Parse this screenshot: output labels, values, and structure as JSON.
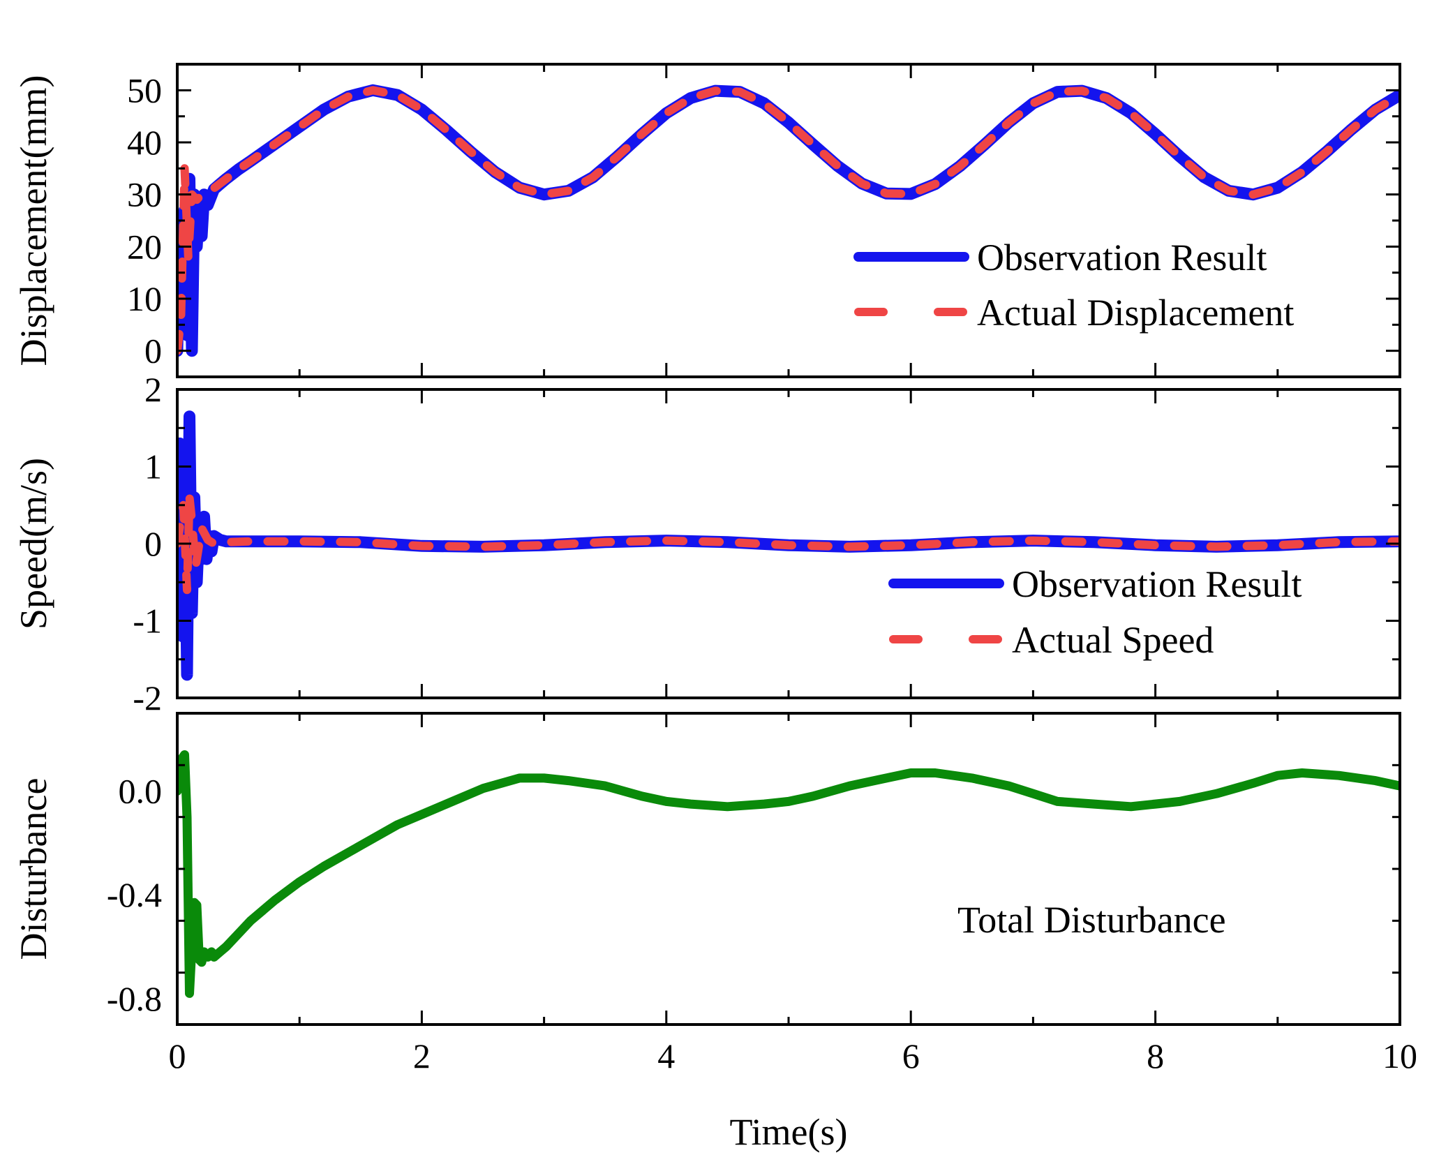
{
  "figure": {
    "xlabel": "Time(s)"
  },
  "colors": {
    "observation": "#1414ee",
    "actual": "#ef4545",
    "disturbance": "#0a8a0a",
    "axis": "#000000"
  },
  "chart_data": [
    {
      "type": "line",
      "ylabel": "Displacement(mm)",
      "xlim": [
        0,
        10
      ],
      "ylim": [
        -5,
        55
      ],
      "xticks": [
        0,
        2,
        4,
        6,
        8,
        10
      ],
      "yticks": [
        0,
        10,
        20,
        30,
        40,
        50
      ],
      "ytick_labels": [
        "0",
        "10",
        "20",
        "30",
        "40",
        "50"
      ],
      "legend": {
        "position": "right",
        "entries": [
          "Observation Result",
          "Actual Displacement"
        ]
      },
      "series": [
        {
          "name": "Observation Result",
          "style": "solid",
          "color": "#1414ee",
          "x": [
            0,
            0.02,
            0.04,
            0.06,
            0.08,
            0.1,
            0.12,
            0.14,
            0.16,
            0.18,
            0.2,
            0.22,
            0.25,
            0.3,
            0.35,
            0.4,
            0.5,
            0.6,
            0.8,
            1.0,
            1.2,
            1.4,
            1.6,
            1.8,
            2.0,
            2.2,
            2.4,
            2.6,
            2.8,
            3.0,
            3.2,
            3.4,
            3.6,
            3.8,
            4.0,
            4.2,
            4.4,
            4.6,
            4.8,
            5.0,
            5.2,
            5.4,
            5.6,
            5.8,
            6.0,
            6.2,
            6.4,
            6.6,
            6.8,
            7.0,
            7.2,
            7.4,
            7.6,
            7.8,
            8.0,
            8.2,
            8.4,
            8.6,
            8.8,
            9.0,
            9.2,
            9.4,
            9.6,
            9.8,
            10.0
          ],
          "y": [
            0,
            25,
            5,
            27,
            3,
            33,
            0,
            30,
            20,
            28,
            22,
            30,
            28,
            31,
            32,
            33,
            34.8,
            36.4,
            39.7,
            43.0,
            46.3,
            48.8,
            50.0,
            49.1,
            46.3,
            42.4,
            38.2,
            34.3,
            31.3,
            30.0,
            30.7,
            33.3,
            37.3,
            41.6,
            45.6,
            48.5,
            49.9,
            49.7,
            47.5,
            43.8,
            39.6,
            35.5,
            32.1,
            30.2,
            30.1,
            32.0,
            35.4,
            39.5,
            43.8,
            47.5,
            49.7,
            49.9,
            48.5,
            45.6,
            41.6,
            37.3,
            33.3,
            30.7,
            30.0,
            31.3,
            34.3,
            38.2,
            42.4,
            46.3,
            49.1
          ]
        },
        {
          "name": "Actual Displacement",
          "style": "dashed",
          "color": "#ef4545",
          "x": [
            0,
            0.03,
            0.06,
            0.09,
            0.12,
            0.16,
            0.2,
            0.25,
            0.3,
            0.4,
            0.5,
            0.6,
            0.8,
            1.0,
            1.2,
            1.4,
            1.6,
            1.8,
            2.0,
            2.2,
            2.4,
            2.6,
            2.8,
            3.0,
            3.2,
            3.4,
            3.6,
            3.8,
            4.0,
            4.2,
            4.4,
            4.6,
            4.8,
            5.0,
            5.2,
            5.4,
            5.6,
            5.8,
            6.0,
            6.2,
            6.4,
            6.6,
            6.8,
            7.0,
            7.2,
            7.4,
            7.6,
            7.8,
            8.0,
            8.2,
            8.4,
            8.6,
            8.8,
            9.0,
            9.2,
            9.4,
            9.6,
            9.8,
            10.0
          ],
          "y": [
            0,
            6,
            35,
            18,
            30,
            29,
            30,
            30.5,
            31.2,
            33,
            34.8,
            36.4,
            39.7,
            43.0,
            46.3,
            48.8,
            50.0,
            49.1,
            46.3,
            42.4,
            38.2,
            34.3,
            31.3,
            30.0,
            30.7,
            33.3,
            37.3,
            41.6,
            45.6,
            48.5,
            49.9,
            49.7,
            47.5,
            43.8,
            39.6,
            35.5,
            32.1,
            30.2,
            30.1,
            32.0,
            35.4,
            39.5,
            43.8,
            47.5,
            49.7,
            49.9,
            48.5,
            45.6,
            41.6,
            37.3,
            33.3,
            30.7,
            30.0,
            31.3,
            34.3,
            38.2,
            42.4,
            46.3,
            49.1
          ]
        }
      ]
    },
    {
      "type": "line",
      "ylabel": "Speed(m/s)",
      "xlim": [
        0,
        10
      ],
      "ylim": [
        -2,
        2
      ],
      "xticks": [
        0,
        2,
        4,
        6,
        8,
        10
      ],
      "yticks": [
        -2,
        -1,
        0,
        1,
        2
      ],
      "ytick_labels": [
        "-2",
        "-1",
        "0",
        "1",
        "2"
      ],
      "legend": {
        "position": "bottom-right",
        "entries": [
          "Observation Result",
          "Actual Speed"
        ]
      },
      "series": [
        {
          "name": "Observation Result",
          "style": "solid",
          "color": "#1414ee",
          "x": [
            0,
            0.02,
            0.04,
            0.06,
            0.08,
            0.1,
            0.12,
            0.14,
            0.16,
            0.18,
            0.2,
            0.22,
            0.24,
            0.26,
            0.28,
            0.3,
            0.35,
            0.4,
            0.5,
            0.6,
            1.0,
            1.5,
            2.0,
            2.5,
            3.0,
            3.5,
            4.0,
            4.5,
            5.0,
            5.5,
            6.0,
            6.5,
            7.0,
            7.5,
            8.0,
            8.5,
            9.0,
            9.5,
            10.0
          ],
          "y": [
            0,
            1.3,
            -1.2,
            1.1,
            -1.7,
            1.65,
            -0.9,
            0.6,
            -0.5,
            0.25,
            -0.2,
            0.35,
            -0.2,
            0.1,
            -0.1,
            0.1,
            0.05,
            0.03,
            0.03,
            0.03,
            0.03,
            0.02,
            -0.03,
            -0.04,
            -0.02,
            0.02,
            0.04,
            0.02,
            -0.02,
            -0.04,
            -0.02,
            0.02,
            0.04,
            0.02,
            -0.02,
            -0.04,
            -0.02,
            0.02,
            0.03
          ]
        },
        {
          "name": "Actual Speed",
          "style": "dashed",
          "color": "#ef4545",
          "x": [
            0,
            0.05,
            0.08,
            0.1,
            0.12,
            0.15,
            0.2,
            0.25,
            0.3,
            0.4,
            0.6,
            1.0,
            1.5,
            2.0,
            2.5,
            3.0,
            3.5,
            4.0,
            4.5,
            5.0,
            5.5,
            6.0,
            6.5,
            7.0,
            7.5,
            8.0,
            8.5,
            9.0,
            9.5,
            10.0
          ],
          "y": [
            0,
            0.5,
            -0.6,
            0.6,
            0.3,
            -0.3,
            0.2,
            0.05,
            0.0,
            0.02,
            0.03,
            0.03,
            0.02,
            -0.03,
            -0.04,
            -0.02,
            0.02,
            0.04,
            0.02,
            -0.02,
            -0.04,
            -0.02,
            0.02,
            0.04,
            0.02,
            -0.02,
            -0.04,
            -0.02,
            0.02,
            0.03
          ]
        }
      ]
    },
    {
      "type": "line",
      "ylabel": "Disturbance",
      "xlim": [
        0,
        10
      ],
      "ylim": [
        -0.9,
        0.3
      ],
      "xticks": [
        0,
        2,
        4,
        6,
        8,
        10
      ],
      "xtick_labels": [
        "0",
        "2",
        "4",
        "6",
        "8",
        "10"
      ],
      "yticks": [
        -0.8,
        -0.4,
        0.0
      ],
      "ytick_labels": [
        "-0.8",
        "-0.4",
        "0.0"
      ],
      "annotation": "Total Disturbance",
      "series": [
        {
          "name": "Total Disturbance",
          "style": "solid",
          "color": "#0a8a0a",
          "x": [
            0,
            0.03,
            0.06,
            0.08,
            0.1,
            0.12,
            0.14,
            0.16,
            0.18,
            0.2,
            0.22,
            0.25,
            0.28,
            0.3,
            0.35,
            0.4,
            0.5,
            0.6,
            0.8,
            1.0,
            1.2,
            1.5,
            1.8,
            2.0,
            2.2,
            2.5,
            2.8,
            3.0,
            3.2,
            3.5,
            3.8,
            4.0,
            4.2,
            4.5,
            4.8,
            5.0,
            5.2,
            5.5,
            5.8,
            6.0,
            6.2,
            6.5,
            6.8,
            7.0,
            7.2,
            7.5,
            7.8,
            8.0,
            8.2,
            8.5,
            8.8,
            9.0,
            9.2,
            9.5,
            9.8,
            10.0
          ],
          "y": [
            0.0,
            0.12,
            0.14,
            -0.1,
            -0.78,
            -0.6,
            -0.43,
            -0.44,
            -0.65,
            -0.66,
            -0.62,
            -0.64,
            -0.62,
            -0.64,
            -0.62,
            -0.6,
            -0.55,
            -0.5,
            -0.42,
            -0.35,
            -0.29,
            -0.21,
            -0.13,
            -0.09,
            -0.05,
            0.01,
            0.05,
            0.05,
            0.04,
            0.02,
            -0.02,
            -0.04,
            -0.05,
            -0.06,
            -0.05,
            -0.04,
            -0.02,
            0.02,
            0.05,
            0.07,
            0.07,
            0.05,
            0.02,
            -0.01,
            -0.04,
            -0.05,
            -0.06,
            -0.05,
            -0.04,
            -0.01,
            0.03,
            0.06,
            0.07,
            0.06,
            0.04,
            0.02
          ]
        }
      ]
    }
  ]
}
